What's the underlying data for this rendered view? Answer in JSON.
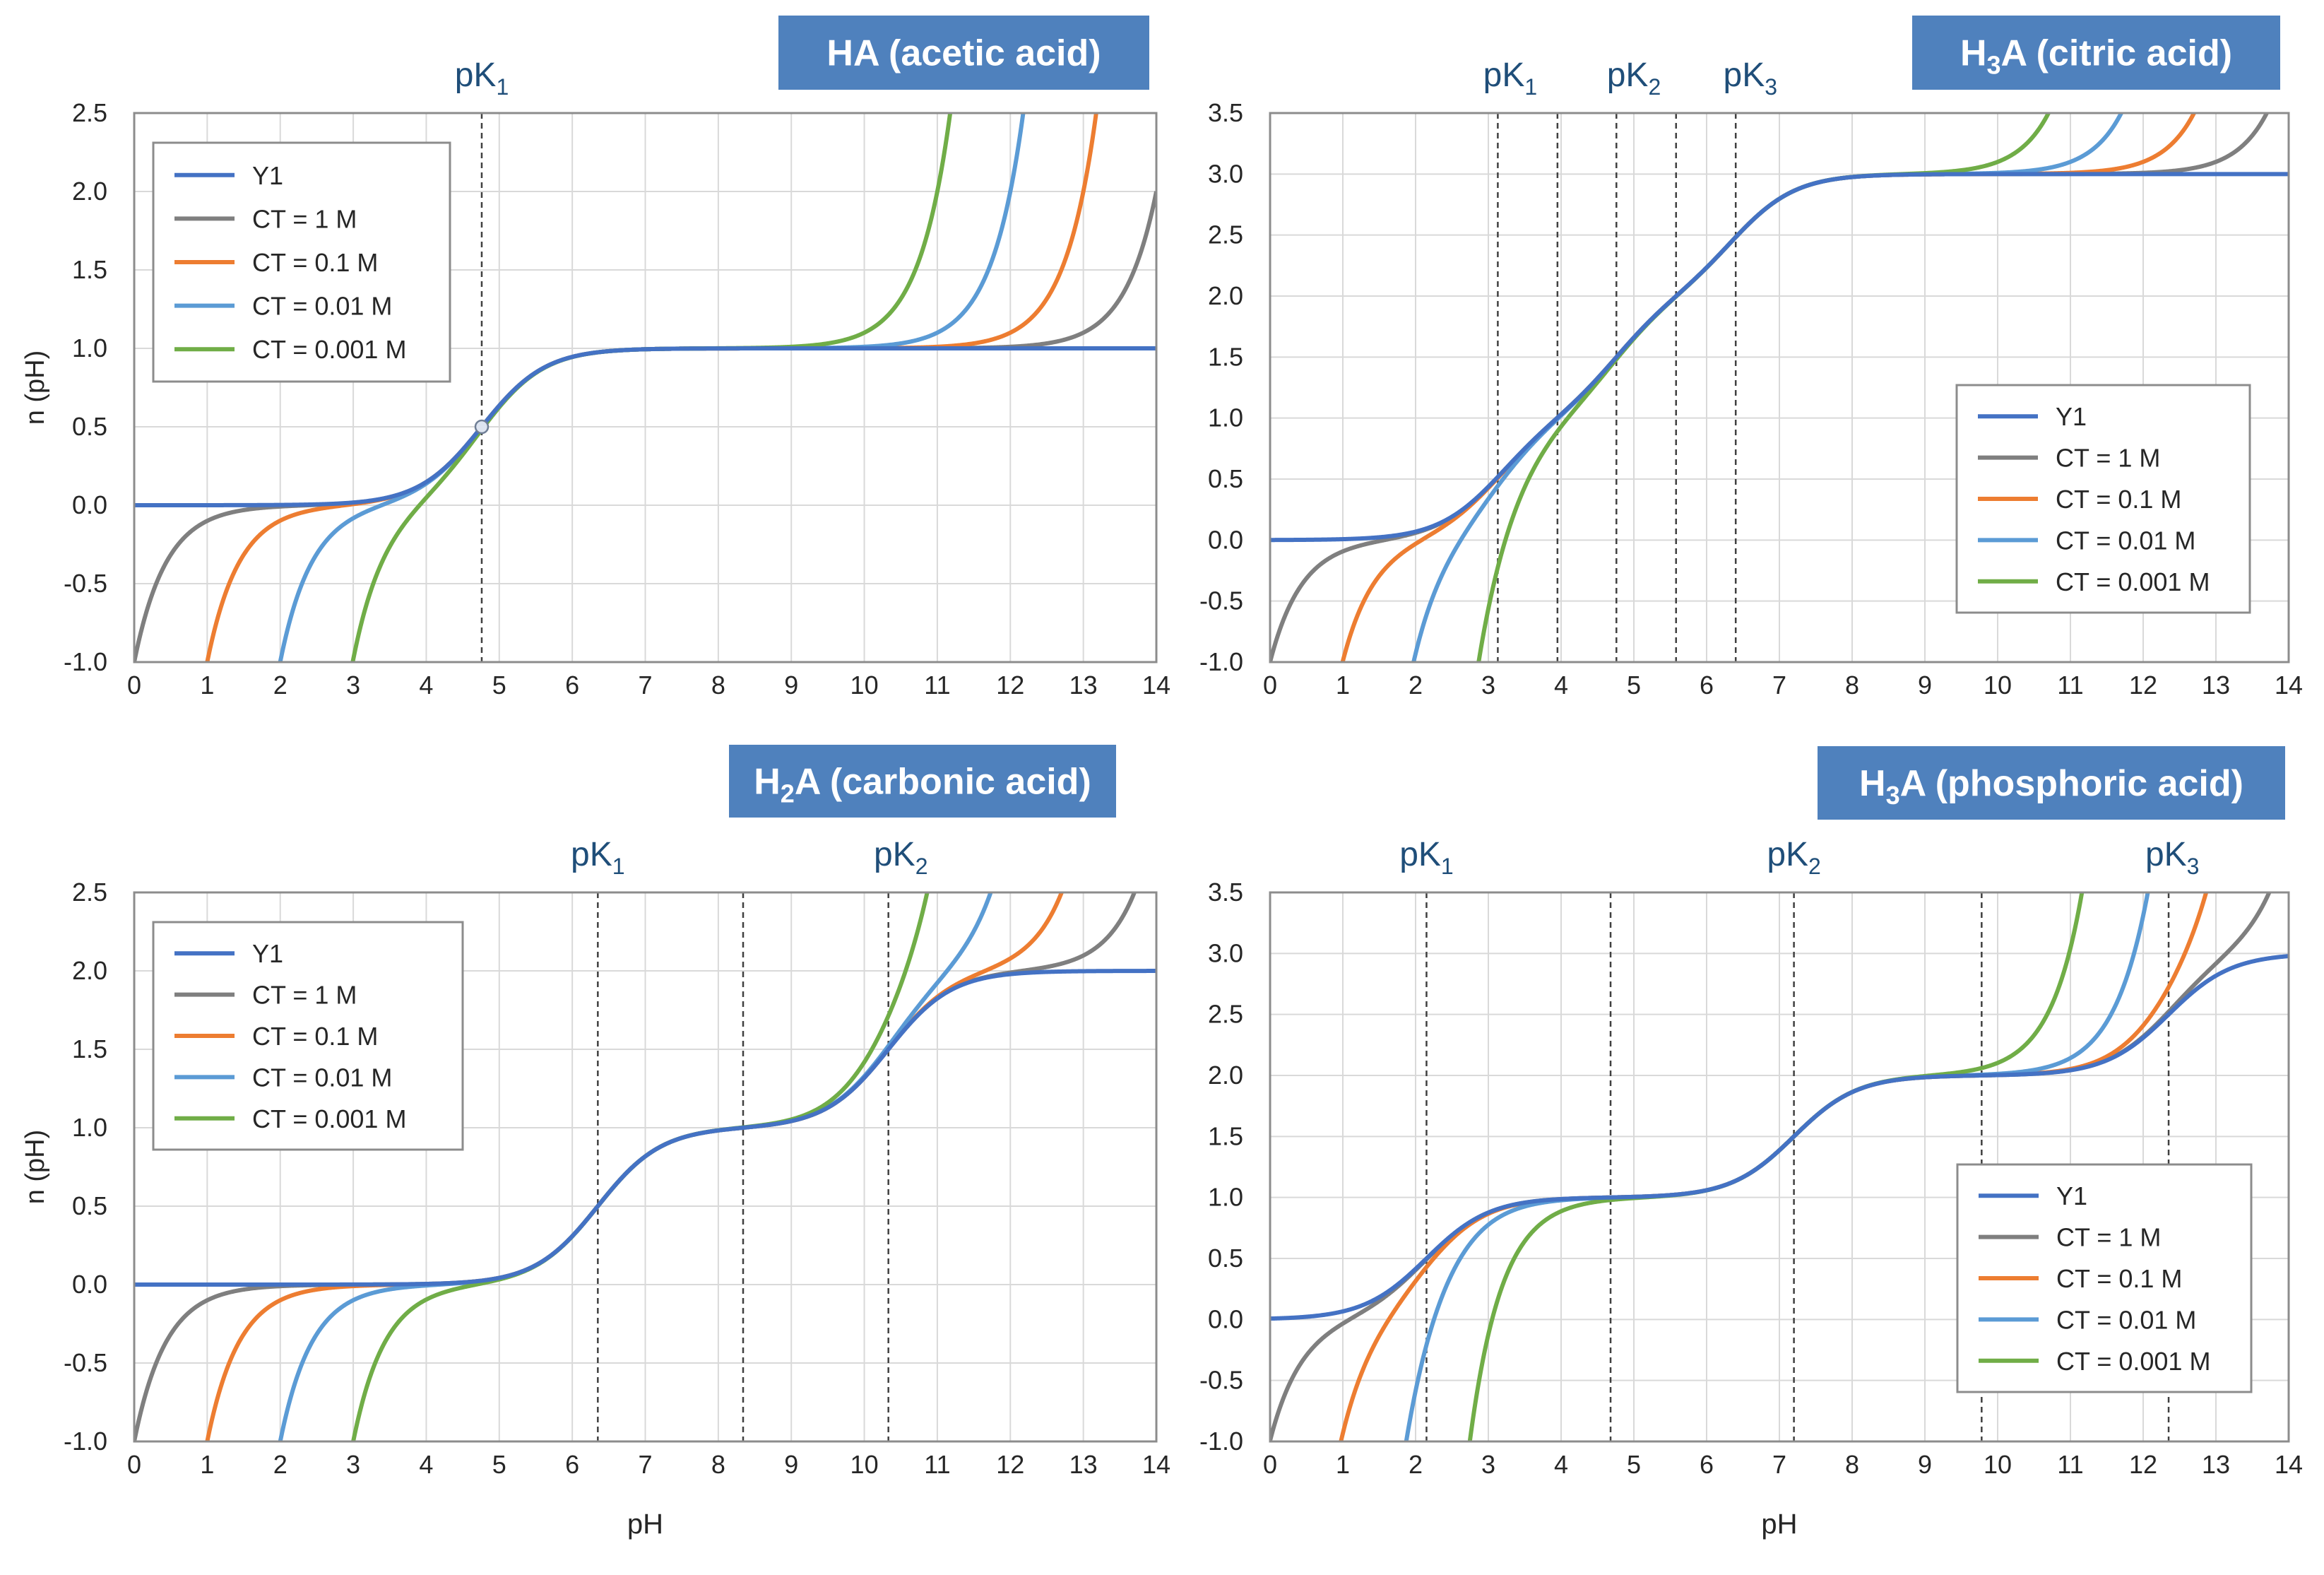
{
  "colors": {
    "y1": "#4472C4",
    "ct1": "#7F7F7F",
    "ct01": "#ED7D31",
    "ct001": "#5B9BD5",
    "ct0001": "#70AD47",
    "title_bg": "#4F81BD",
    "pk_text": "#1F4E79",
    "grid": "#D9D9D9",
    "axis": "#595959"
  },
  "chart_data": [
    {
      "id": "acetic",
      "type": "line",
      "title": "HA (acetic acid)",
      "title_parts": [
        {
          "t": "HA (acetic acid)"
        }
      ],
      "xlabel": "",
      "ylabel": "n (pH)",
      "xlim": [
        0,
        14
      ],
      "ylim": [
        -1.0,
        2.5
      ],
      "x_ticks": [
        "0",
        "1",
        "2",
        "3",
        "4",
        "5",
        "6",
        "7",
        "8",
        "9",
        "10",
        "11",
        "12",
        "13",
        "14"
      ],
      "y_ticks": [
        "-1.0",
        "-0.5",
        "0.0",
        "0.5",
        "1.0",
        "1.5",
        "2.0",
        "2.5"
      ],
      "pK": [
        4.76
      ],
      "pK_lines": [
        4.76
      ],
      "pK_labels": [
        {
          "base": "pK",
          "sub": "1",
          "x": 4.76
        }
      ],
      "marker": {
        "x": 4.76,
        "y": 0.5
      },
      "legend_position": "top-left",
      "series": [
        {
          "name": "Y1",
          "key": "y1",
          "CT": null
        },
        {
          "name": "CT = 1 M",
          "key": "ct1",
          "CT": 1
        },
        {
          "name": "CT = 0.1 M",
          "key": "ct01",
          "CT": 0.1
        },
        {
          "name": "CT = 0.01 M",
          "key": "ct001",
          "CT": 0.01
        },
        {
          "name": "CT = 0.001 M",
          "key": "ct0001",
          "CT": 0.001
        }
      ]
    },
    {
      "id": "citric",
      "type": "line",
      "title": "H3A (citric acid)",
      "title_parts": [
        {
          "t": "H"
        },
        {
          "t": "3",
          "sub": true
        },
        {
          "t": "A (citric acid)"
        }
      ],
      "xlabel": "",
      "ylabel": "",
      "xlim": [
        0,
        14
      ],
      "ylim": [
        -1.0,
        3.5
      ],
      "x_ticks": [
        "0",
        "1",
        "2",
        "3",
        "4",
        "5",
        "6",
        "7",
        "8",
        "9",
        "10",
        "11",
        "12",
        "13",
        "14"
      ],
      "y_ticks": [
        "-1.0",
        "-0.5",
        "0.0",
        "0.5",
        "1.0",
        "1.5",
        "2.0",
        "2.5",
        "3.0",
        "3.5"
      ],
      "pK": [
        3.13,
        4.76,
        6.4
      ],
      "pK_lines": [
        3.13,
        3.95,
        4.76,
        5.58,
        6.4
      ],
      "pK_labels": [
        {
          "base": "pK",
          "sub": "1",
          "x": 3.3
        },
        {
          "base": "pK",
          "sub": "2",
          "x": 5.0
        },
        {
          "base": "pK",
          "sub": "3",
          "x": 6.6
        }
      ],
      "legend_position": "bottom-right",
      "series": [
        {
          "name": "Y1",
          "key": "y1",
          "CT": null
        },
        {
          "name": "CT = 1 M",
          "key": "ct1",
          "CT": 1
        },
        {
          "name": "CT = 0.1 M",
          "key": "ct01",
          "CT": 0.1
        },
        {
          "name": "CT = 0.01 M",
          "key": "ct001",
          "CT": 0.01
        },
        {
          "name": "CT = 0.001 M",
          "key": "ct0001",
          "CT": 0.001
        }
      ]
    },
    {
      "id": "carbonic",
      "type": "line",
      "title": "H2A (carbonic acid)",
      "title_parts": [
        {
          "t": "H"
        },
        {
          "t": "2",
          "sub": true
        },
        {
          "t": "A (carbonic acid)"
        }
      ],
      "xlabel": "pH",
      "ylabel": "n (pH)",
      "xlim": [
        0,
        14
      ],
      "ylim": [
        -1.0,
        2.5
      ],
      "x_ticks": [
        "0",
        "1",
        "2",
        "3",
        "4",
        "5",
        "6",
        "7",
        "8",
        "9",
        "10",
        "11",
        "12",
        "13",
        "14"
      ],
      "y_ticks": [
        "-1.0",
        "-0.5",
        "0.0",
        "0.5",
        "1.0",
        "1.5",
        "2.0",
        "2.5"
      ],
      "pK": [
        6.35,
        10.33
      ],
      "pK_lines": [
        6.35,
        8.34,
        10.33
      ],
      "pK_labels": [
        {
          "base": "pK",
          "sub": "1",
          "x": 6.35
        },
        {
          "base": "pK",
          "sub": "2",
          "x": 10.5
        }
      ],
      "legend_position": "top-left",
      "series": [
        {
          "name": "Y1",
          "key": "y1",
          "CT": null
        },
        {
          "name": "CT = 1 M",
          "key": "ct1",
          "CT": 1
        },
        {
          "name": "CT = 0.1 M",
          "key": "ct01",
          "CT": 0.1
        },
        {
          "name": "CT = 0.01 M",
          "key": "ct001",
          "CT": 0.01
        },
        {
          "name": "CT = 0.001 M",
          "key": "ct0001",
          "CT": 0.001
        }
      ]
    },
    {
      "id": "phosphoric",
      "type": "line",
      "title": "H3A (phosphoric acid)",
      "title_parts": [
        {
          "t": "H"
        },
        {
          "t": "3",
          "sub": true
        },
        {
          "t": "A (phosphoric acid)"
        }
      ],
      "xlabel": "pH",
      "ylabel": "",
      "xlim": [
        0,
        14
      ],
      "ylim": [
        -1.0,
        3.5
      ],
      "x_ticks": [
        "0",
        "1",
        "2",
        "3",
        "4",
        "5",
        "6",
        "7",
        "8",
        "9",
        "10",
        "11",
        "12",
        "13",
        "14"
      ],
      "y_ticks": [
        "-1.0",
        "-0.5",
        "0.0",
        "0.5",
        "1.0",
        "1.5",
        "2.0",
        "2.5",
        "3.0",
        "3.5"
      ],
      "pK": [
        2.15,
        7.2,
        12.35
      ],
      "pK_lines": [
        2.15,
        4.68,
        7.2,
        9.78,
        12.35
      ],
      "pK_labels": [
        {
          "base": "pK",
          "sub": "1",
          "x": 2.15
        },
        {
          "base": "pK",
          "sub": "2",
          "x": 7.2
        },
        {
          "base": "pK",
          "sub": "3",
          "x": 12.4
        }
      ],
      "legend_position": "bottom-right",
      "series": [
        {
          "name": "Y1",
          "key": "y1",
          "CT": null
        },
        {
          "name": "CT = 1 M",
          "key": "ct1",
          "CT": 1
        },
        {
          "name": "CT = 0.1 M",
          "key": "ct01",
          "CT": 0.1
        },
        {
          "name": "CT = 0.01 M",
          "key": "ct001",
          "CT": 0.01
        },
        {
          "name": "CT = 0.001 M",
          "key": "ct0001",
          "CT": 0.001
        }
      ]
    }
  ]
}
